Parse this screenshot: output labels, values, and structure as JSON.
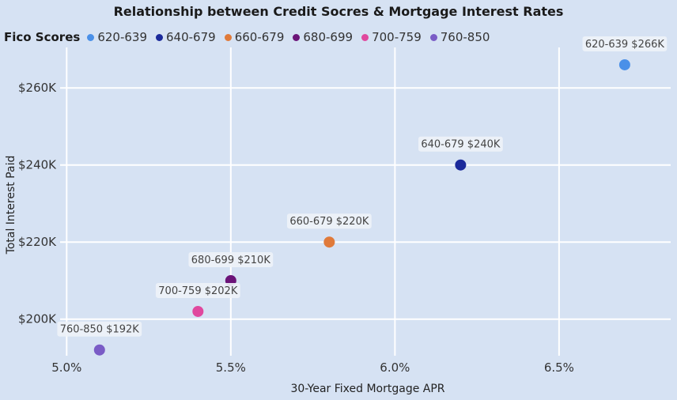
{
  "chart_data": {
    "type": "scatter",
    "title": "Relationship between Credit Socres & Mortgage Interest Rates",
    "legend_title": "Fico Scores",
    "legend_position": "top-left",
    "xlabel": "30-Year Fixed Mortgage APR",
    "ylabel": "Total Interest Paid",
    "xlim": [
      4.98,
      6.84
    ],
    "ylim": [
      190.5,
      270.5
    ],
    "x_ticks": [
      5.0,
      5.5,
      6.0,
      6.5
    ],
    "x_tick_labels": [
      "5.0%",
      "5.5%",
      "6.0%",
      "6.5%"
    ],
    "y_ticks": [
      200,
      220,
      240,
      260
    ],
    "y_tick_labels": [
      "$200K",
      "$220K",
      "$240K",
      "$260K"
    ],
    "grid": true,
    "series": [
      {
        "name": "620-639",
        "color": "#4a90e8",
        "x": 6.7,
        "y": 266,
        "label": "$266K"
      },
      {
        "name": "640-679",
        "color": "#1b2a9b",
        "x": 6.2,
        "y": 240,
        "label": "$240K"
      },
      {
        "name": "660-679",
        "color": "#e07a3a",
        "x": 5.8,
        "y": 220,
        "label": "$220K"
      },
      {
        "name": "680-699",
        "color": "#6b1478",
        "x": 5.5,
        "y": 210,
        "label": "$210K"
      },
      {
        "name": "700-759",
        "color": "#e0489e",
        "x": 5.4,
        "y": 202,
        "label": "$202K"
      },
      {
        "name": "760-850",
        "color": "#7a5cc6",
        "x": 5.1,
        "y": 192,
        "label": "$192K"
      }
    ]
  }
}
